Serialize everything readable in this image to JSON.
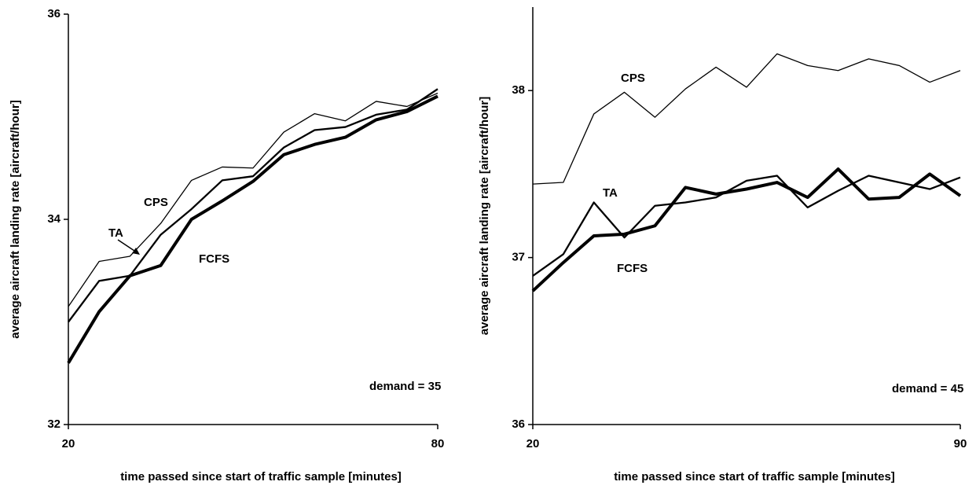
{
  "chart_data": [
    {
      "type": "line",
      "xlabel": "time passed since start of traffic sample [minutes]",
      "ylabel": "average aircraft landing rate [aircraft/hour]",
      "x": [
        20,
        25,
        30,
        35,
        40,
        45,
        50,
        55,
        60,
        65,
        70,
        75,
        80
      ],
      "xlim": [
        20,
        80
      ],
      "xticks": [
        20,
        80
      ],
      "ylim": [
        32,
        36
      ],
      "yticks": [
        32,
        34,
        36
      ],
      "series": [
        {
          "name": "CPS",
          "color": "#000000",
          "line_width": 1.3,
          "values": [
            33.15,
            33.59,
            33.64,
            33.96,
            34.38,
            34.51,
            34.5,
            34.85,
            35.03,
            34.96,
            35.15,
            35.1,
            35.23
          ]
        },
        {
          "name": "TA",
          "color": "#000000",
          "line_width": 2.3,
          "values": [
            33.0,
            33.4,
            33.45,
            33.85,
            34.1,
            34.38,
            34.42,
            34.7,
            34.87,
            34.9,
            35.02,
            35.07,
            35.27
          ]
        },
        {
          "name": "FCFS",
          "color": "#000000",
          "line_width": 4,
          "values": [
            32.6,
            33.1,
            33.45,
            33.55,
            34.0,
            34.18,
            34.37,
            34.63,
            34.73,
            34.8,
            34.97,
            35.05,
            35.2
          ]
        }
      ],
      "annotations": [
        "CPS",
        "TA",
        "FCFS",
        "demand = 35"
      ]
    },
    {
      "type": "line",
      "xlabel": "time passed since start of traffic sample [minutes]",
      "ylabel": "average aircraft landing rate [aircraft/hour]",
      "x": [
        20,
        25,
        30,
        35,
        40,
        45,
        50,
        55,
        60,
        65,
        70,
        75,
        80,
        85,
        90
      ],
      "xlim": [
        20,
        90
      ],
      "xticks": [
        20,
        90
      ],
      "ylim": [
        36,
        38.5
      ],
      "yticks": [
        36,
        37,
        38
      ],
      "series": [
        {
          "name": "CPS",
          "color": "#000000",
          "line_width": 1.3,
          "values": [
            37.44,
            37.45,
            37.86,
            37.99,
            37.84,
            38.01,
            38.14,
            38.02,
            38.22,
            38.15,
            38.12,
            38.19,
            38.15,
            38.05,
            38.12
          ]
        },
        {
          "name": "TA",
          "color": "#000000",
          "line_width": 2.3,
          "values": [
            36.89,
            37.02,
            37.33,
            37.12,
            37.31,
            37.33,
            37.36,
            37.46,
            37.49,
            37.3,
            37.4,
            37.49,
            37.45,
            37.41,
            37.48
          ]
        },
        {
          "name": "FCFS",
          "color": "#000000",
          "line_width": 4,
          "values": [
            36.8,
            36.97,
            37.13,
            37.14,
            37.19,
            37.42,
            37.38,
            37.41,
            37.45,
            37.36,
            37.53,
            37.35,
            37.36,
            37.5,
            37.37
          ]
        }
      ],
      "annotations": [
        "CPS",
        "TA",
        "FCFS",
        "demand = 45"
      ]
    }
  ]
}
